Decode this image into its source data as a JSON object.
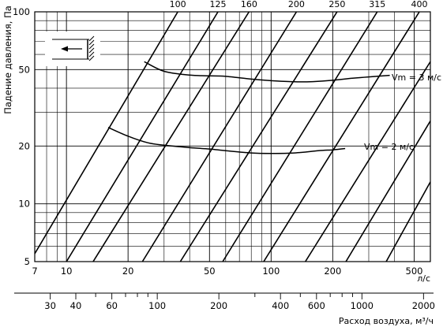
{
  "chart_data": {
    "type": "line",
    "xscale": "log",
    "yscale": "log",
    "xlim": [
      7,
      600
    ],
    "ylim": [
      5,
      100
    ],
    "ylabel": "Падение давления, Па",
    "xlabel": "л/с",
    "x2label": "Расход воздуха, м³/ч",
    "yticks": [
      5,
      10,
      20,
      50,
      100
    ],
    "xticks_major": [
      7,
      10,
      20,
      50,
      100,
      200,
      500
    ],
    "x2ticks": [
      30,
      40,
      60,
      100,
      200,
      400,
      600,
      1000,
      2000
    ],
    "grid": true,
    "series": [
      {
        "name": "Vm = 3 м/с",
        "x": [
          24,
          30,
          40,
          50,
          60,
          80,
          100,
          130,
          160,
          200,
          250,
          300,
          380
        ],
        "y": [
          55,
          49,
          46.8,
          46.4,
          46.1,
          44.6,
          43.8,
          43.2,
          43.3,
          44,
          45.1,
          45.8,
          46.7
        ]
      },
      {
        "name": "Vm = 2 м/с",
        "x": [
          16,
          20,
          25,
          30,
          40,
          50,
          60,
          80,
          100,
          130,
          170,
          200,
          230
        ],
        "y": [
          25,
          22.5,
          20.8,
          20.2,
          19.6,
          19.3,
          18.9,
          18.4,
          18.3,
          18.4,
          18.9,
          19.1,
          19.4
        ]
      }
    ],
    "diameter_lines": [
      {
        "label": "100",
        "x": [
          7,
          35
        ],
        "y": [
          5.5,
          100
        ]
      },
      {
        "label": "125",
        "x": [
          10,
          55
        ],
        "y": [
          5,
          100
        ]
      },
      {
        "label": "160",
        "x": [
          13.5,
          78
        ],
        "y": [
          5,
          100
        ]
      },
      {
        "label": "200",
        "x": [
          23.5,
          133
        ],
        "y": [
          5,
          100
        ]
      },
      {
        "label": "250",
        "x": [
          36,
          210
        ],
        "y": [
          5,
          100
        ]
      },
      {
        "label": "315",
        "x": [
          58,
          330
        ],
        "y": [
          5,
          100
        ]
      },
      {
        "label": "400",
        "x": [
          92,
          530
        ],
        "y": [
          5,
          100
        ]
      },
      {
        "x": [
          147,
          600
        ],
        "y": [
          5,
          55
        ]
      },
      {
        "x": [
          232,
          600
        ],
        "y": [
          5,
          27
        ]
      },
      {
        "x": [
          365,
          600
        ],
        "y": [
          5,
          13
        ]
      }
    ]
  },
  "annotations": {
    "vm3": "Vm = 3 м/с",
    "vm2": "Vm = 2 м/с"
  },
  "colors": {
    "grid": "#000000",
    "line": "#000000"
  },
  "icons": {
    "legend_icon": "airflow-arrow-icon"
  }
}
